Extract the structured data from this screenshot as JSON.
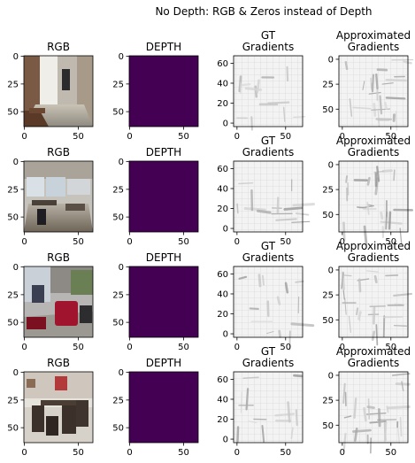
{
  "figure": {
    "suptitle": "No Depth: RGB & Zeros instead of Depth"
  },
  "chart_data": {
    "type": "image-grid",
    "title": "No Depth: RGB & Zeros instead of Depth",
    "rows": 4,
    "columns": [
      {
        "key": "rgb",
        "title": "RGB",
        "title_lines": [
          "RGB"
        ],
        "xticks": [
          "0",
          "50"
        ],
        "yticks": [
          "0",
          "25",
          "50"
        ]
      },
      {
        "key": "depth",
        "title": "DEPTH",
        "title_lines": [
          "DEPTH"
        ],
        "xticks": [
          "0",
          "50"
        ],
        "yticks": [
          "0",
          "25",
          "50"
        ],
        "fill_color": "#440154"
      },
      {
        "key": "gt",
        "title": "GT Gradients",
        "title_lines": [
          "GT",
          "Gradients"
        ],
        "xticks": [
          "0",
          "50"
        ],
        "yticks": [
          "0",
          "20",
          "40",
          "60"
        ]
      },
      {
        "key": "approx",
        "title": "Approximated Gradients",
        "title_lines": [
          "Approximated",
          "Gradients"
        ],
        "xticks": [
          "0",
          "50"
        ],
        "yticks": [
          "0",
          "25",
          "50"
        ]
      }
    ],
    "image_size": [
      64,
      64
    ],
    "colors": {
      "depth_zero": "#440154",
      "gradient_bg": "#efefef",
      "axis": "#000000"
    }
  }
}
